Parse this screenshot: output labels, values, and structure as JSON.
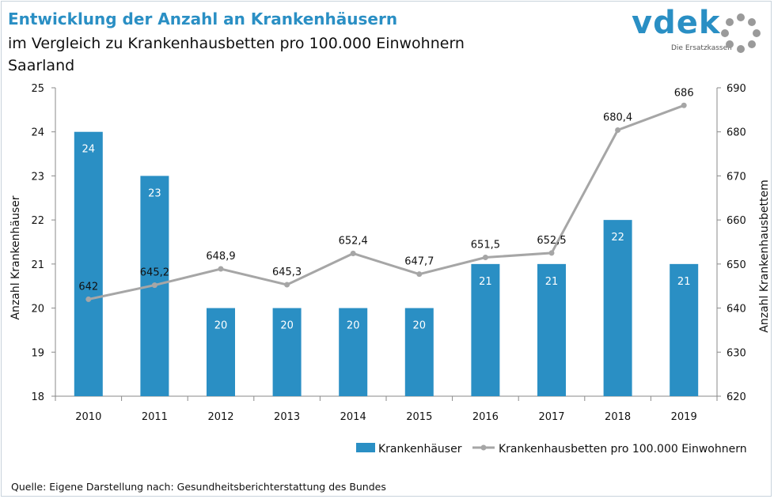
{
  "header": {
    "title": "Entwicklung der Anzahl an Krankenhäusern",
    "subtitle": "im Vergleich zu Krankenhausbetten pro 100.000 Einwohnern",
    "region": "Saarland"
  },
  "logo": {
    "text": "vdek",
    "sub": "Die Ersatzkassen",
    "color": "#2a8fc4"
  },
  "source": "Quelle: Eigene Darstellung nach: Gesundheitsberichterstattung des Bundes",
  "chart_data": {
    "type": "bar",
    "categories": [
      "2010",
      "2011",
      "2012",
      "2013",
      "2014",
      "2015",
      "2016",
      "2017",
      "2018",
      "2019"
    ],
    "series": [
      {
        "name": "Krankenhäuser",
        "type": "bar",
        "axis": "left",
        "color": "#2a8fc4",
        "values": [
          24,
          23,
          20,
          20,
          20,
          20,
          21,
          21,
          22,
          21
        ],
        "labels": [
          "24",
          "23",
          "20",
          "20",
          "20",
          "20",
          "21",
          "21",
          "22",
          "21"
        ]
      },
      {
        "name": "Krankenhausbetten pro 100.000 Einwohnern",
        "type": "line",
        "axis": "right",
        "color": "#a6a6a6",
        "values": [
          642,
          645.2,
          648.9,
          645.3,
          652.4,
          647.7,
          651.5,
          652.5,
          680.4,
          686
        ],
        "labels": [
          "642",
          "645,2",
          "648,9",
          "645,3",
          "652,4",
          "647,7",
          "651,5",
          "652,5",
          "680,4",
          "686"
        ]
      }
    ],
    "ylabel": "Anzahl Krankenhäuser",
    "ylim": [
      18,
      25
    ],
    "yticks": [
      "18",
      "19",
      "20",
      "21",
      "22",
      "23",
      "24",
      "25"
    ],
    "y2label": "Anzahl Krankenhausbettem",
    "y2lim": [
      620,
      690
    ],
    "y2ticks": [
      "620",
      "630",
      "640",
      "650",
      "660",
      "670",
      "680",
      "690"
    ],
    "grid": false,
    "legend": "bottom-right"
  }
}
